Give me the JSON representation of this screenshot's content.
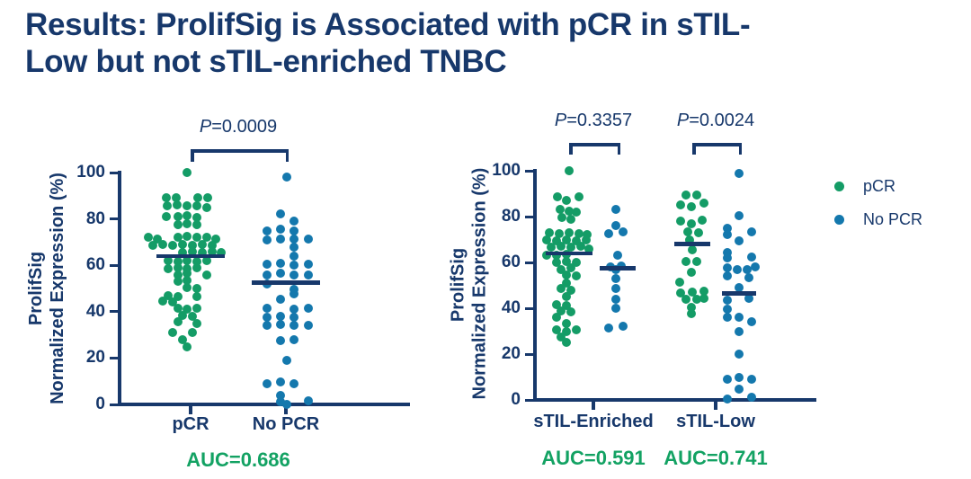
{
  "slide": {
    "title_line1": "Results: ProlifSig is Associated with pCR in sTIL-",
    "title_line2": "Low but not sTIL-enriched TNBC"
  },
  "colors": {
    "navy": "#17386b",
    "green": "#149c66",
    "blue": "#1478ad",
    "auc_green": "#13a263"
  },
  "legend": {
    "items": [
      {
        "label": "pCR",
        "color": "green"
      },
      {
        "label": "No PCR",
        "color": "blue"
      }
    ]
  },
  "chart_data": [
    {
      "type": "scatter",
      "id": "left-dot-plot",
      "ylabel_line1": "ProlifSig",
      "ylabel_line2": "Normalized Expression (%)",
      "ylim": [
        0,
        100
      ],
      "yticks": [
        0,
        20,
        40,
        60,
        80,
        100
      ],
      "categories": [
        "pCR",
        "No PCR"
      ],
      "category_groups": [
        [
          0
        ],
        [
          1
        ]
      ],
      "significance": [
        {
          "text": "P=0.0009",
          "from_group": 0,
          "to_group": 1
        }
      ],
      "auc": [
        {
          "text": "AUC=0.686",
          "between_groups": [
            0,
            1
          ]
        }
      ],
      "groups": [
        {
          "name": "pCR",
          "legend": "pCR",
          "color": "green",
          "median": 64,
          "points": [
            [
              -4,
              100
            ],
            [
              -27,
              89
            ],
            [
              -16,
              89
            ],
            [
              8,
              89
            ],
            [
              19,
              89
            ],
            [
              -26,
              85.5
            ],
            [
              -15,
              86
            ],
            [
              -4,
              85.5
            ],
            [
              7,
              85.5
            ],
            [
              18,
              85
            ],
            [
              -27,
              81
            ],
            [
              -14,
              81
            ],
            [
              -4,
              81.5
            ],
            [
              7,
              80.5
            ],
            [
              -14,
              77.5
            ],
            [
              -4,
              78
            ],
            [
              7,
              77.5
            ],
            [
              -47,
              72
            ],
            [
              -37,
              71.5
            ],
            [
              -14,
              72
            ],
            [
              -4,
              72.5
            ],
            [
              7,
              72
            ],
            [
              18,
              72
            ],
            [
              28,
              71.5
            ],
            [
              -42,
              68.5
            ],
            [
              -31,
              69
            ],
            [
              -20,
              68.5
            ],
            [
              -9,
              69
            ],
            [
              2,
              68.5
            ],
            [
              13,
              69
            ],
            [
              24,
              68.5
            ],
            [
              -9,
              65.5
            ],
            [
              2,
              66
            ],
            [
              13,
              65.5
            ],
            [
              24,
              66
            ],
            [
              34,
              65.5
            ],
            [
              -25,
              62
            ],
            [
              -14,
              61.5
            ],
            [
              -4,
              62
            ],
            [
              7,
              61.5
            ],
            [
              18,
              62
            ],
            [
              -25,
              58.5
            ],
            [
              -14,
              59
            ],
            [
              -4,
              58.5
            ],
            [
              7,
              59
            ],
            [
              -14,
              56
            ],
            [
              -4,
              56.5
            ],
            [
              18,
              56
            ],
            [
              -14,
              53
            ],
            [
              -4,
              53.5
            ],
            [
              -4,
              50.5
            ],
            [
              7,
              50
            ],
            [
              -25,
              47
            ],
            [
              -14,
              46.5
            ],
            [
              7,
              46.5
            ],
            [
              -31,
              44.5
            ],
            [
              -20,
              44
            ],
            [
              -14,
              41.5
            ],
            [
              -4,
              41
            ],
            [
              7,
              41.5
            ],
            [
              -9,
              38.5
            ],
            [
              2,
              38
            ],
            [
              -14,
              35.5
            ],
            [
              7,
              35
            ],
            [
              -20,
              31
            ],
            [
              2,
              31
            ],
            [
              -9,
              28
            ],
            [
              -4,
              25
            ]
          ]
        },
        {
          "name": "No PCR",
          "legend": "No PCR",
          "color": "blue",
          "median": 52.5,
          "points": [
            [
              1,
              98
            ],
            [
              -6,
              82
            ],
            [
              9,
              79
            ],
            [
              -21,
              75
            ],
            [
              -6,
              75.5
            ],
            [
              9,
              75
            ],
            [
              -21,
              71
            ],
            [
              -6,
              71.5
            ],
            [
              9,
              71.5
            ],
            [
              25,
              71.5
            ],
            [
              9,
              68
            ],
            [
              9,
              64
            ],
            [
              -21,
              60.5
            ],
            [
              -6,
              61
            ],
            [
              9,
              60
            ],
            [
              25,
              60.5
            ],
            [
              -21,
              56
            ],
            [
              -6,
              56.5
            ],
            [
              9,
              56
            ],
            [
              25,
              56
            ],
            [
              -21,
              52
            ],
            [
              9,
              49.5
            ],
            [
              9,
              47.5
            ],
            [
              -6,
              45.5
            ],
            [
              -21,
              41.5
            ],
            [
              9,
              41
            ],
            [
              25,
              41.5
            ],
            [
              -21,
              37.5
            ],
            [
              -6,
              38
            ],
            [
              9,
              37.5
            ],
            [
              -21,
              34
            ],
            [
              -6,
              34.5
            ],
            [
              9,
              34
            ],
            [
              25,
              34
            ],
            [
              -6,
              27.5
            ],
            [
              9,
              28
            ],
            [
              1,
              19
            ],
            [
              -21,
              9
            ],
            [
              -6,
              9.5
            ],
            [
              9,
              9
            ],
            [
              -6,
              4
            ],
            [
              -6,
              1
            ],
            [
              25,
              1.5
            ],
            [
              1,
              0
            ]
          ]
        }
      ]
    },
    {
      "type": "scatter",
      "id": "right-dot-plot",
      "ylabel_line1": "ProlifSig",
      "ylabel_line2": "Normalized Expression (%)",
      "ylim": [
        0,
        100
      ],
      "yticks": [
        0,
        20,
        40,
        60,
        80,
        100
      ],
      "categories": [
        "sTIL-Enriched",
        "sTIL-Low"
      ],
      "category_groups": [
        [
          0,
          1
        ],
        [
          2,
          3
        ]
      ],
      "significance": [
        {
          "text": "P=0.3357",
          "from_group": 0,
          "to_group": 1
        },
        {
          "text": "P=0.0024",
          "from_group": 2,
          "to_group": 3
        }
      ],
      "auc": [
        {
          "text": "AUC=0.591",
          "between_groups": [
            0,
            1
          ]
        },
        {
          "text": "AUC=0.741",
          "between_groups": [
            2,
            3
          ]
        }
      ],
      "groups": [
        {
          "name": "sTIL-Enriched pCR",
          "legend": "pCR",
          "color": "green",
          "median": 64,
          "points": [
            [
              0,
              100
            ],
            [
              -13,
              88.5
            ],
            [
              11,
              88.5
            ],
            [
              -3,
              87
            ],
            [
              -10,
              83
            ],
            [
              0,
              82.5
            ],
            [
              8,
              82
            ],
            [
              -8,
              79.5
            ],
            [
              2,
              79
            ],
            [
              -22,
              73
            ],
            [
              -11,
              72.5
            ],
            [
              0,
              73
            ],
            [
              11,
              72.5
            ],
            [
              20,
              72
            ],
            [
              -25,
              70
            ],
            [
              -14,
              69.5
            ],
            [
              -3,
              70
            ],
            [
              8,
              69.5
            ],
            [
              19,
              70
            ],
            [
              -20,
              66.5
            ],
            [
              -9,
              67
            ],
            [
              2,
              66.5
            ],
            [
              13,
              67
            ],
            [
              22,
              66
            ],
            [
              -25,
              63
            ],
            [
              -14,
              63
            ],
            [
              -3,
              63.5
            ],
            [
              -14,
              60
            ],
            [
              -3,
              60.5
            ],
            [
              8,
              60
            ],
            [
              -9,
              57
            ],
            [
              2,
              57.5
            ],
            [
              -3,
              54.5
            ],
            [
              8,
              54
            ],
            [
              -3,
              51
            ],
            [
              -9,
              48.5
            ],
            [
              2,
              48
            ],
            [
              -3,
              45
            ],
            [
              -14,
              41.5
            ],
            [
              -3,
              41
            ],
            [
              -9,
              39
            ],
            [
              2,
              38.5
            ],
            [
              -14,
              36
            ],
            [
              -3,
              33.5
            ],
            [
              -14,
              30.5
            ],
            [
              -3,
              30
            ],
            [
              8,
              30.5
            ],
            [
              -9,
              27.5
            ],
            [
              -3,
              25
            ]
          ]
        },
        {
          "name": "sTIL-Enriched No PCR",
          "legend": "No PCR",
          "color": "blue",
          "median": 57.5,
          "points": [
            [
              -2,
              83
            ],
            [
              -2,
              76
            ],
            [
              -10,
              72.5
            ],
            [
              6,
              73.5
            ],
            [
              0,
              63
            ],
            [
              -8,
              58
            ],
            [
              4,
              58.5
            ],
            [
              -2,
              57
            ],
            [
              -2,
              53
            ],
            [
              -2,
              48.5
            ],
            [
              -2,
              44
            ],
            [
              -2,
              40
            ],
            [
              -10,
              31.5
            ],
            [
              6,
              32
            ]
          ]
        },
        {
          "name": "sTIL-Low pCR",
          "legend": "pCR",
          "color": "green",
          "median": 68,
          "points": [
            [
              -7,
              89.5
            ],
            [
              5,
              89.5
            ],
            [
              -13,
              85
            ],
            [
              -1,
              84.5
            ],
            [
              13,
              86
            ],
            [
              -13,
              78
            ],
            [
              -1,
              77
            ],
            [
              11,
              78.5
            ],
            [
              -5,
              73.5
            ],
            [
              7,
              73
            ],
            [
              -3,
              70
            ],
            [
              0,
              65.5
            ],
            [
              -7,
              60.5
            ],
            [
              5,
              60.5
            ],
            [
              -1,
              55.5
            ],
            [
              -14,
              51.5
            ],
            [
              -13,
              46.5
            ],
            [
              0,
              47
            ],
            [
              13,
              47.5
            ],
            [
              -7,
              44
            ],
            [
              5,
              44
            ],
            [
              13,
              44.5
            ],
            [
              -1,
              40.5
            ],
            [
              -1,
              37.5
            ]
          ]
        },
        {
          "name": "sTIL-Low No PCR",
          "legend": "No PCR",
          "color": "blue",
          "median": 46.5,
          "points": [
            [
              0,
              99
            ],
            [
              0,
              80.5
            ],
            [
              -13,
              75
            ],
            [
              14,
              73.5
            ],
            [
              -13,
              72
            ],
            [
              0,
              69.5
            ],
            [
              -13,
              64.5
            ],
            [
              -13,
              62
            ],
            [
              14,
              62.5
            ],
            [
              -13,
              57.5
            ],
            [
              -2,
              57
            ],
            [
              9,
              57
            ],
            [
              18,
              58
            ],
            [
              -13,
              54
            ],
            [
              11,
              53.5
            ],
            [
              0,
              49
            ],
            [
              11,
              44.5
            ],
            [
              -13,
              43.5
            ],
            [
              -13,
              39.5
            ],
            [
              -13,
              36
            ],
            [
              0,
              36
            ],
            [
              14,
              34
            ],
            [
              0,
              30
            ],
            [
              0,
              20
            ],
            [
              -13,
              9
            ],
            [
              0,
              10
            ],
            [
              14,
              9
            ],
            [
              0,
              4.7
            ],
            [
              -13,
              0.4
            ],
            [
              14,
              1
            ]
          ]
        }
      ]
    }
  ]
}
